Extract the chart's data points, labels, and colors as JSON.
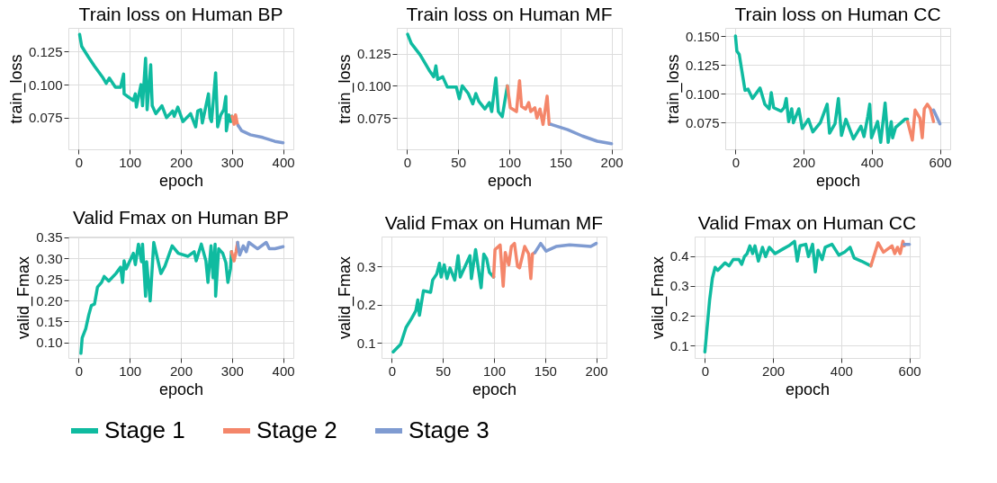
{
  "chart_data": [
    {
      "type": "line",
      "title": "Train loss on Human BP",
      "xlabel": "epoch",
      "ylabel": "train_loss",
      "xlim": [
        -20,
        420
      ],
      "ylim": [
        0.051,
        0.143
      ],
      "xticks": [
        0,
        100,
        200,
        300,
        400
      ],
      "yticks": [
        0.075,
        {
          "value": 0.1,
          "label": "0.100"
        },
        0.125
      ],
      "grid": true,
      "legend": "bottom",
      "line_style": "solid",
      "marker": "none",
      "series": [
        {
          "name": "Stage 1",
          "color": "#0fbba0",
          "x": [
            2,
            6,
            19,
            31,
            48,
            54,
            60,
            72,
            82,
            88,
            89,
            107,
            111,
            113,
            122,
            125,
            131,
            134,
            141,
            144,
            151,
            163,
            172,
            184,
            187,
            194,
            204,
            219,
            229,
            233,
            239,
            242,
            254,
            257,
            260,
            268,
            272,
            278,
            284,
            288,
            289,
            294,
            298,
            300
          ],
          "values": [
            0.138,
            0.129,
            0.121,
            0.114,
            0.105,
            0.101,
            0.105,
            0.098,
            0.098,
            0.108,
            0.093,
            0.088,
            0.093,
            0.083,
            0.1,
            0.084,
            0.12,
            0.081,
            0.115,
            0.084,
            0.078,
            0.084,
            0.075,
            0.08,
            0.076,
            0.083,
            0.072,
            0.078,
            0.068,
            0.08,
            0.081,
            0.071,
            0.093,
            0.075,
            0.072,
            0.109,
            0.068,
            0.077,
            0.081,
            0.091,
            0.065,
            0.077,
            0.072,
            0.076
          ]
        },
        {
          "name": "Stage 2",
          "color": "#f4866a",
          "x": [
            300,
            301,
            304,
            307,
            310,
            312
          ],
          "values": [
            0.076,
            0.075,
            0.07,
            0.077,
            0.071,
            0.069
          ]
        },
        {
          "name": "Stage 3",
          "color": "#7f9bd1",
          "x": [
            312,
            319,
            336,
            360,
            384,
            400
          ],
          "values": [
            0.069,
            0.065,
            0.062,
            0.06,
            0.057,
            0.056
          ]
        }
      ]
    },
    {
      "type": "line",
      "title": "Train loss on Human MF",
      "xlabel": "epoch",
      "ylabel": "train_loss",
      "xlim": [
        -10,
        210
      ],
      "ylim": [
        0.0507,
        0.145
      ],
      "xticks": [
        0,
        50,
        100,
        150,
        200
      ],
      "yticks": [
        0.075,
        {
          "value": 0.1,
          "label": "0.100"
        },
        0.125
      ],
      "grid": true,
      "legend": "bottom",
      "line_style": "solid",
      "marker": "none",
      "series": [
        {
          "name": "Stage 1",
          "color": "#0fbba0",
          "x": [
            0.6,
            4.1,
            12.9,
            21.7,
            26.1,
            28.2,
            30,
            34.9,
            39.4,
            48.2,
            51.1,
            54,
            59.9,
            64.3,
            67.3,
            70.2,
            76.1,
            80.5,
            82.8,
            86.9,
            89.3,
            93.1,
            98.1
          ],
          "values": [
            0.14,
            0.133,
            0.124,
            0.112,
            0.107,
            0.1155,
            0.105,
            0.107,
            0.099,
            0.099,
            0.09,
            0.1,
            0.094,
            0.086,
            0.094,
            0.088,
            0.082,
            0.087,
            0.08,
            0.106,
            0.08,
            0.076,
            0.1
          ]
        },
        {
          "name": "Stage 2",
          "color": "#f4866a",
          "x": [
            98.1,
            101,
            107,
            110,
            112,
            116,
            119,
            121,
            125,
            127,
            130,
            133,
            137,
            139,
            141
          ],
          "values": [
            0.1,
            0.083,
            0.08,
            0.104,
            0.084,
            0.082,
            0.087,
            0.08,
            0.083,
            0.075,
            0.082,
            0.07,
            0.092,
            0.07,
            0.07
          ]
        },
        {
          "name": "Stage 3",
          "color": "#7f9bd1",
          "x": [
            141,
            157,
            171.5,
            186,
            200
          ],
          "values": [
            0.07,
            0.066,
            0.061,
            0.057,
            0.055
          ]
        }
      ]
    },
    {
      "type": "line",
      "title": "Train loss on Human CC",
      "xlabel": "epoch",
      "ylabel": "train_loss",
      "xlim": [
        -30,
        630
      ],
      "ylim": [
        0.052,
        0.157
      ],
      "xticks": [
        0,
        200,
        400,
        600
      ],
      "yticks": [
        0.075,
        {
          "value": 0.1,
          "label": "0.100"
        },
        0.125,
        {
          "value": 0.15,
          "label": "0.150"
        }
      ],
      "grid": true,
      "legend": "bottom",
      "line_style": "solid",
      "marker": "none",
      "series": [
        {
          "name": "Stage 1",
          "color": "#0fbba0",
          "x": [
            0,
            4,
            11,
            28,
            37,
            50,
            72,
            86,
            99,
            105,
            112,
            134,
            143,
            149,
            156,
            165,
            170,
            186,
            196,
            214,
            227,
            249,
            269,
            276,
            292,
            302,
            311,
            324,
            346,
            368,
            377,
            388,
            394,
            399,
            417,
            426,
            439,
            448,
            457,
            461,
            470,
            497,
            505
          ],
          "values": [
            0.15,
            0.137,
            0.134,
            0.103,
            0.104,
            0.096,
            0.105,
            0.091,
            0.087,
            0.101,
            0.088,
            0.085,
            0.088,
            0.096,
            0.076,
            0.087,
            0.075,
            0.087,
            0.07,
            0.078,
            0.067,
            0.075,
            0.091,
            0.066,
            0.074,
            0.096,
            0.064,
            0.078,
            0.061,
            0.072,
            0.063,
            0.08,
            0.091,
            0.062,
            0.076,
            0.058,
            0.092,
            0.058,
            0.076,
            0.062,
            0.071,
            0.078,
            0.078
          ]
        },
        {
          "name": "Stage 2",
          "color": "#f4866a",
          "x": [
            505,
            519,
            527,
            541,
            548,
            554,
            563,
            572,
            581
          ],
          "values": [
            0.076,
            0.06,
            0.086,
            0.079,
            0.062,
            0.087,
            0.091,
            0.087,
            0.076
          ]
        },
        {
          "name": "Stage 3",
          "color": "#7f9bd1",
          "x": [
            581,
            600
          ],
          "values": [
            0.086,
            0.074
          ]
        }
      ]
    },
    {
      "type": "line",
      "title": "Valid Fmax on Human BP",
      "xlabel": "epoch",
      "ylabel": "valid_Fmax",
      "xlim": [
        -20,
        420
      ],
      "ylim": [
        0.063,
        0.352
      ],
      "xticks": [
        0,
        100,
        200,
        300,
        400
      ],
      "yticks": [
        {
          "value": 0.1,
          "label": "0.10"
        },
        0.15,
        {
          "value": 0.2,
          "label": "0.20"
        },
        0.25,
        {
          "value": 0.3,
          "label": "0.30"
        },
        0.35
      ],
      "grid": true,
      "legend": "bottom",
      "line_style": "solid",
      "marker": "none",
      "series": [
        {
          "name": "Stage 1",
          "color": "#0fbba0",
          "x": [
            4.5,
            7,
            14,
            20,
            25,
            31,
            37,
            45,
            50,
            59,
            73,
            82,
            86,
            89,
            93,
            107,
            111,
            117,
            123,
            125,
            131,
            133,
            140,
            147,
            161,
            169,
            183,
            195,
            214,
            226,
            230,
            240,
            249,
            253,
            259,
            263,
            267,
            268,
            274,
            282,
            288,
            292,
            297,
            299
          ],
          "values": [
            0.074,
            0.111,
            0.133,
            0.166,
            0.188,
            0.191,
            0.232,
            0.243,
            0.257,
            0.246,
            0.264,
            0.279,
            0.243,
            0.294,
            0.275,
            0.312,
            0.285,
            0.334,
            0.292,
            0.334,
            0.21,
            0.292,
            0.199,
            0.338,
            0.264,
            0.282,
            0.33,
            0.312,
            0.305,
            0.316,
            0.294,
            0.334,
            0.294,
            0.243,
            0.33,
            0.254,
            0.334,
            0.21,
            0.323,
            0.312,
            0.29,
            0.243,
            0.275,
            0.316
          ]
        },
        {
          "name": "Stage 2",
          "color": "#f4866a",
          "x": [
            299,
            304,
            308,
            311
          ],
          "values": [
            0.316,
            0.294,
            0.316,
            0.338
          ]
        },
        {
          "name": "Stage 3",
          "color": "#7f9bd1",
          "x": [
            311,
            315,
            322,
            328,
            333,
            350,
            367,
            373,
            384,
            400
          ],
          "values": [
            0.338,
            0.308,
            0.33,
            0.316,
            0.338,
            0.323,
            0.338,
            0.323,
            0.323,
            0.328
          ]
        }
      ]
    },
    {
      "type": "line",
      "title": "Valid Fmax on Human MF",
      "xlabel": "epoch",
      "ylabel": "valid_Fmax",
      "xlim": [
        -10,
        210
      ],
      "ylim": [
        0.06,
        0.378
      ],
      "xticks": [
        0,
        50,
        100,
        150,
        200
      ],
      "yticks": [
        0.1,
        0.2,
        0.3
      ],
      "grid": true,
      "legend": "bottom",
      "line_style": "solid",
      "marker": "none",
      "series": [
        {
          "name": "Stage 1",
          "color": "#0fbba0",
          "x": [
            1.4,
            8.7,
            14,
            19.5,
            23.6,
            25.5,
            27.1,
            31,
            38,
            40,
            44,
            46.7,
            48.3,
            51.3,
            54,
            57,
            61.6,
            64.9,
            67,
            76.5,
            77.9,
            82,
            87.4,
            90,
            92.8,
            95.5,
            99.6
          ],
          "values": [
            0.076,
            0.096,
            0.14,
            0.164,
            0.184,
            0.212,
            0.172,
            0.236,
            0.232,
            0.264,
            0.28,
            0.308,
            0.272,
            0.304,
            0.268,
            0.296,
            0.264,
            0.328,
            0.272,
            0.328,
            0.268,
            0.344,
            0.244,
            0.332,
            0.32,
            0.284,
            0.272
          ]
        },
        {
          "name": "Stage 2",
          "color": "#f4866a",
          "x": [
            99.6,
            101,
            106,
            109,
            111,
            114.5,
            117,
            120,
            123,
            125,
            130,
            134,
            136,
            137.6,
            140
          ],
          "values": [
            0.272,
            0.344,
            0.356,
            0.248,
            0.336,
            0.304,
            0.352,
            0.36,
            0.3,
            0.296,
            0.352,
            0.332,
            0.268,
            0.332,
            0.336
          ]
        },
        {
          "name": "Stage 3",
          "color": "#7f9bd1",
          "x": [
            140,
            145.7,
            151,
            160.7,
            174,
            186,
            194.6,
            200
          ],
          "values": [
            0.336,
            0.36,
            0.34,
            0.352,
            0.356,
            0.354,
            0.352,
            0.36
          ]
        }
      ]
    },
    {
      "type": "line",
      "title": "Valid Fmax on Human CC",
      "xlabel": "epoch",
      "ylabel": "valid_Fmax",
      "xlim": [
        -30,
        630
      ],
      "ylim": [
        0.059,
        0.465
      ],
      "xticks": [
        0,
        200,
        400,
        600
      ],
      "yticks": [
        0.1,
        0.2,
        0.3,
        0.4
      ],
      "grid": true,
      "legend": "bottom",
      "line_style": "solid",
      "marker": "none",
      "series": [
        {
          "name": "Stage 1",
          "color": "#0fbba0",
          "x": [
            0,
            14,
            22,
            30,
            38,
            59,
            71,
            83,
            100,
            108,
            116,
            124,
            132,
            140,
            147,
            157,
            169,
            178,
            189,
            206,
            230,
            246,
            263,
            271,
            279,
            296,
            304,
            316,
            324,
            332,
            344,
            353,
            373,
            393,
            410,
            426,
            438,
            459,
            487
          ],
          "values": [
            0.079,
            0.254,
            0.326,
            0.362,
            0.352,
            0.377,
            0.367,
            0.388,
            0.388,
            0.372,
            0.398,
            0.408,
            0.434,
            0.408,
            0.434,
            0.383,
            0.429,
            0.398,
            0.429,
            0.408,
            0.424,
            0.434,
            0.449,
            0.383,
            0.434,
            0.439,
            0.398,
            0.439,
            0.347,
            0.419,
            0.388,
            0.429,
            0.439,
            0.403,
            0.413,
            0.429,
            0.393,
            0.383,
            0.367
          ]
        },
        {
          "name": "Stage 2",
          "color": "#f4866a",
          "x": [
            487,
            508,
            524,
            549,
            557,
            565,
            573,
            581,
            585
          ],
          "values": [
            0.367,
            0.444,
            0.413,
            0.434,
            0.408,
            0.429,
            0.408,
            0.449,
            0.434
          ]
        },
        {
          "name": "Stage 3",
          "color": "#7f9bd1",
          "x": [
            585,
            600
          ],
          "values": [
            0.439,
            0.439
          ]
        }
      ]
    }
  ]
}
